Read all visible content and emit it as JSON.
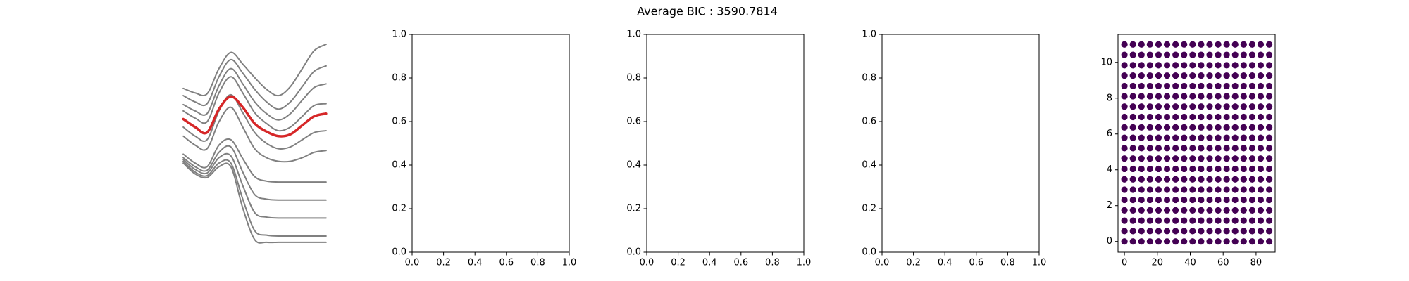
{
  "title": "Average BIC : 3590.7814",
  "chart_data": [
    {
      "type": "line",
      "frame": false,
      "x": [
        0,
        1,
        2,
        3,
        4,
        5,
        6,
        7,
        8,
        9,
        10,
        11,
        12
      ],
      "series": [
        {
          "color": "#808080",
          "linewidth": 2,
          "values": [
            17.3,
            16.8,
            16.7,
            19.5,
            21.3,
            20.0,
            18.5,
            17.2,
            16.5,
            17.5,
            19.5,
            21.5,
            22.2
          ]
        },
        {
          "color": "#808080",
          "linewidth": 2,
          "values": [
            16.5,
            15.8,
            15.6,
            18.6,
            20.5,
            19.0,
            17.2,
            15.8,
            15.0,
            15.8,
            17.5,
            19.2,
            19.8
          ]
        },
        {
          "color": "#808080",
          "linewidth": 2,
          "values": [
            15.5,
            14.8,
            14.5,
            17.6,
            19.5,
            17.8,
            15.8,
            14.5,
            13.8,
            14.5,
            16.0,
            17.4,
            17.8
          ]
        },
        {
          "color": "#808080",
          "linewidth": 2,
          "values": [
            14.8,
            14.0,
            13.6,
            16.8,
            18.6,
            16.8,
            14.6,
            13.4,
            12.6,
            13.0,
            14.2,
            15.4,
            15.6
          ]
        },
        {
          "color": "#808080",
          "linewidth": 2,
          "values": [
            13.0,
            12.0,
            11.6,
            14.8,
            16.6,
            14.6,
            12.4,
            11.2,
            10.6,
            10.8,
            11.6,
            12.4,
            12.6
          ]
        },
        {
          "color": "#808080",
          "linewidth": 2,
          "values": [
            12.0,
            11.0,
            10.6,
            13.6,
            15.2,
            13.0,
            10.6,
            9.6,
            9.2,
            9.2,
            9.6,
            10.2,
            10.4
          ]
        },
        {
          "color": "#808080",
          "linewidth": 2,
          "values": [
            10.0,
            9.0,
            8.6,
            11.0,
            11.6,
            9.5,
            7.5,
            7.0,
            6.9,
            6.9,
            6.9,
            6.9,
            6.9
          ]
        },
        {
          "color": "#808080",
          "linewidth": 2,
          "values": [
            9.6,
            8.6,
            8.2,
            10.2,
            10.8,
            8.0,
            5.5,
            5.0,
            4.9,
            4.9,
            4.9,
            4.9,
            4.9
          ]
        },
        {
          "color": "#808080",
          "linewidth": 2,
          "values": [
            9.4,
            8.3,
            7.9,
            9.6,
            9.8,
            6.5,
            3.5,
            3.0,
            2.9,
            2.9,
            2.9,
            2.9,
            2.9
          ]
        },
        {
          "color": "#808080",
          "linewidth": 2,
          "values": [
            9.2,
            8.0,
            7.6,
            9.0,
            9.0,
            5.0,
            1.5,
            1.0,
            0.9,
            0.9,
            0.9,
            0.9,
            0.9
          ]
        },
        {
          "color": "#808080",
          "linewidth": 2,
          "values": [
            9.0,
            7.8,
            7.4,
            8.6,
            8.6,
            4.0,
            0.5,
            0.2,
            0.2,
            0.2,
            0.2,
            0.2,
            0.2
          ]
        },
        {
          "color": "#d62728",
          "linewidth": 3.5,
          "values": [
            13.9,
            13.0,
            12.4,
            15.0,
            16.4,
            15.2,
            13.4,
            12.5,
            12.0,
            12.2,
            13.2,
            14.2,
            14.5
          ]
        }
      ]
    },
    {
      "type": "axes",
      "frame": true,
      "xlim": [
        0,
        1
      ],
      "ylim": [
        0,
        1
      ],
      "xticks": [
        {
          "value": 0,
          "label": "0.0"
        },
        0.2,
        0.4,
        0.6,
        0.8,
        {
          "value": 1,
          "label": "1.0"
        }
      ],
      "yticks": [
        {
          "value": 0,
          "label": "0.0"
        },
        0.2,
        0.4,
        0.6,
        0.8,
        {
          "value": 1,
          "label": "1.0"
        }
      ]
    },
    {
      "type": "axes",
      "frame": true,
      "xlim": [
        0,
        1
      ],
      "ylim": [
        0,
        1
      ],
      "xticks": [
        {
          "value": 0,
          "label": "0.0"
        },
        0.2,
        0.4,
        0.6,
        0.8,
        {
          "value": 1,
          "label": "1.0"
        }
      ],
      "yticks": [
        {
          "value": 0,
          "label": "0.0"
        },
        0.2,
        0.4,
        0.6,
        0.8,
        {
          "value": 1,
          "label": "1.0"
        }
      ]
    },
    {
      "type": "axes",
      "frame": true,
      "xlim": [
        0,
        1
      ],
      "ylim": [
        0,
        1
      ],
      "xticks": [
        {
          "value": 0,
          "label": "0.0"
        },
        0.2,
        0.4,
        0.6,
        0.8,
        {
          "value": 1,
          "label": "1.0"
        }
      ],
      "yticks": [
        {
          "value": 0,
          "label": "0.0"
        },
        0.2,
        0.4,
        0.6,
        0.8,
        {
          "value": 1,
          "label": "1.0"
        }
      ]
    },
    {
      "type": "scatter",
      "frame": true,
      "color": "#440154",
      "xlim": [
        -3.9,
        91.6
      ],
      "ylim": [
        -0.6,
        11.56
      ],
      "xticks": [
        0,
        20,
        40,
        60,
        80
      ],
      "yticks": [
        0,
        2,
        4,
        6,
        8,
        10
      ],
      "x": [
        0,
        5.18,
        10.35,
        15.53,
        20.71,
        25.88,
        31.06,
        36.24,
        41.41,
        46.59,
        51.76,
        56.94,
        62.12,
        67.29,
        72.47,
        77.65,
        82.82,
        88
      ],
      "series": [
        {
          "values": [
            0,
            0,
            0,
            0,
            0,
            0,
            0,
            0,
            0,
            0,
            0,
            0,
            0,
            0,
            0,
            0,
            0,
            0
          ]
        },
        {
          "values": [
            0.58,
            0.58,
            0.58,
            0.58,
            0.58,
            0.58,
            0.58,
            0.58,
            0.58,
            0.58,
            0.58,
            0.58,
            0.58,
            0.58,
            0.58,
            0.58,
            0.58,
            0.58
          ]
        },
        {
          "values": [
            1.16,
            1.16,
            1.16,
            1.16,
            1.16,
            1.16,
            1.16,
            1.16,
            1.16,
            1.16,
            1.16,
            1.16,
            1.16,
            1.16,
            1.16,
            1.16,
            1.16,
            1.16
          ]
        },
        {
          "values": [
            1.74,
            1.74,
            1.74,
            1.74,
            1.74,
            1.74,
            1.74,
            1.74,
            1.74,
            1.74,
            1.74,
            1.74,
            1.74,
            1.74,
            1.74,
            1.74,
            1.74,
            1.74
          ]
        },
        {
          "values": [
            2.32,
            2.32,
            2.32,
            2.32,
            2.32,
            2.32,
            2.32,
            2.32,
            2.32,
            2.32,
            2.32,
            2.32,
            2.32,
            2.32,
            2.32,
            2.32,
            2.32,
            2.32
          ]
        },
        {
          "values": [
            2.89,
            2.89,
            2.89,
            2.89,
            2.89,
            2.89,
            2.89,
            2.89,
            2.89,
            2.89,
            2.89,
            2.89,
            2.89,
            2.89,
            2.89,
            2.89,
            2.89,
            2.89
          ]
        },
        {
          "values": [
            3.47,
            3.47,
            3.47,
            3.47,
            3.47,
            3.47,
            3.47,
            3.47,
            3.47,
            3.47,
            3.47,
            3.47,
            3.47,
            3.47,
            3.47,
            3.47,
            3.47,
            3.47
          ]
        },
        {
          "values": [
            4.05,
            4.05,
            4.05,
            4.05,
            4.05,
            4.05,
            4.05,
            4.05,
            4.05,
            4.05,
            4.05,
            4.05,
            4.05,
            4.05,
            4.05,
            4.05,
            4.05,
            4.05
          ]
        },
        {
          "values": [
            4.63,
            4.63,
            4.63,
            4.63,
            4.63,
            4.63,
            4.63,
            4.63,
            4.63,
            4.63,
            4.63,
            4.63,
            4.63,
            4.63,
            4.63,
            4.63,
            4.63,
            4.63
          ]
        },
        {
          "values": [
            5.21,
            5.21,
            5.21,
            5.21,
            5.21,
            5.21,
            5.21,
            5.21,
            5.21,
            5.21,
            5.21,
            5.21,
            5.21,
            5.21,
            5.21,
            5.21,
            5.21,
            5.21
          ]
        },
        {
          "values": [
            5.79,
            5.79,
            5.79,
            5.79,
            5.79,
            5.79,
            5.79,
            5.79,
            5.79,
            5.79,
            5.79,
            5.79,
            5.79,
            5.79,
            5.79,
            5.79,
            5.79,
            5.79
          ]
        },
        {
          "values": [
            6.37,
            6.37,
            6.37,
            6.37,
            6.37,
            6.37,
            6.37,
            6.37,
            6.37,
            6.37,
            6.37,
            6.37,
            6.37,
            6.37,
            6.37,
            6.37,
            6.37,
            6.37
          ]
        },
        {
          "values": [
            6.95,
            6.95,
            6.95,
            6.95,
            6.95,
            6.95,
            6.95,
            6.95,
            6.95,
            6.95,
            6.95,
            6.95,
            6.95,
            6.95,
            6.95,
            6.95,
            6.95,
            6.95
          ]
        },
        {
          "values": [
            7.53,
            7.53,
            7.53,
            7.53,
            7.53,
            7.53,
            7.53,
            7.53,
            7.53,
            7.53,
            7.53,
            7.53,
            7.53,
            7.53,
            7.53,
            7.53,
            7.53,
            7.53
          ]
        },
        {
          "values": [
            8.11,
            8.11,
            8.11,
            8.11,
            8.11,
            8.11,
            8.11,
            8.11,
            8.11,
            8.11,
            8.11,
            8.11,
            8.11,
            8.11,
            8.11,
            8.11,
            8.11,
            8.11
          ]
        },
        {
          "values": [
            8.68,
            8.68,
            8.68,
            8.68,
            8.68,
            8.68,
            8.68,
            8.68,
            8.68,
            8.68,
            8.68,
            8.68,
            8.68,
            8.68,
            8.68,
            8.68,
            8.68,
            8.68
          ]
        },
        {
          "values": [
            9.26,
            9.26,
            9.26,
            9.26,
            9.26,
            9.26,
            9.26,
            9.26,
            9.26,
            9.26,
            9.26,
            9.26,
            9.26,
            9.26,
            9.26,
            9.26,
            9.26,
            9.26
          ]
        },
        {
          "values": [
            9.84,
            9.84,
            9.84,
            9.84,
            9.84,
            9.84,
            9.84,
            9.84,
            9.84,
            9.84,
            9.84,
            9.84,
            9.84,
            9.84,
            9.84,
            9.84,
            9.84,
            9.84
          ]
        },
        {
          "values": [
            10.42,
            10.42,
            10.42,
            10.42,
            10.42,
            10.42,
            10.42,
            10.42,
            10.42,
            10.42,
            10.42,
            10.42,
            10.42,
            10.42,
            10.42,
            10.42,
            10.42,
            10.42
          ]
        },
        {
          "values": [
            11,
            11,
            11,
            11,
            11,
            11,
            11,
            11,
            11,
            11,
            11,
            11,
            11,
            11,
            11,
            11,
            11,
            11
          ]
        }
      ]
    }
  ]
}
